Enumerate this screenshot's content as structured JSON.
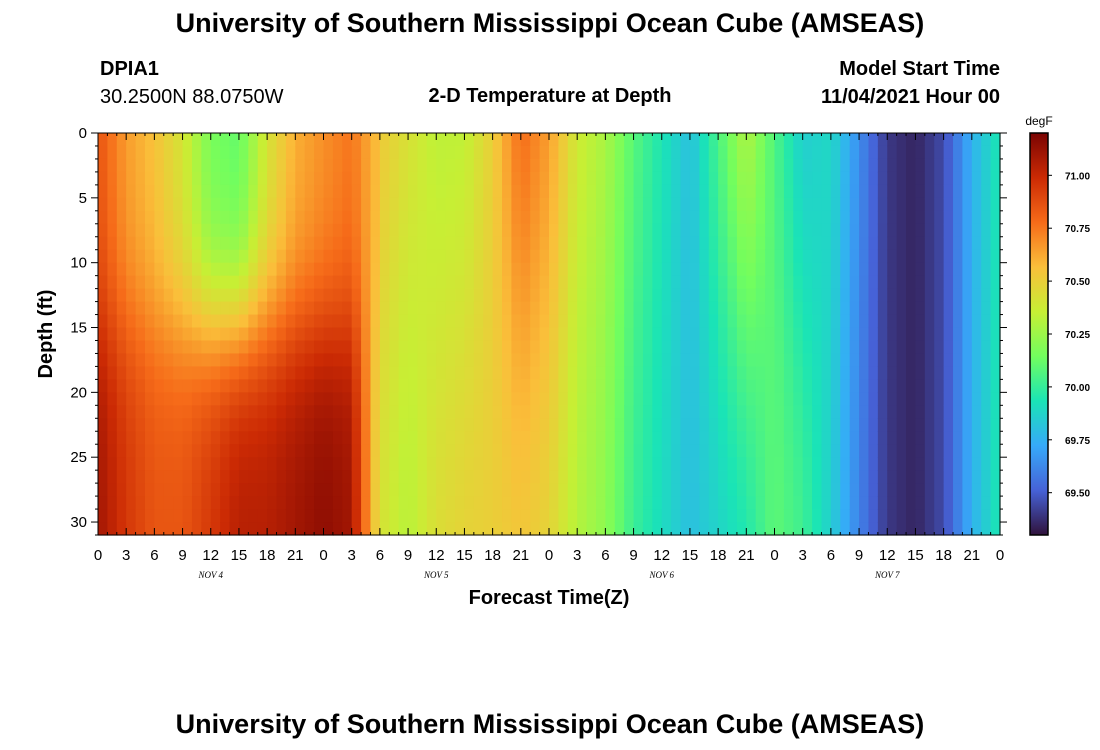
{
  "header": {
    "title": "University of Southern Mississippi Ocean Cube (AMSEAS)",
    "station_id": "DPIA1",
    "station_coords": "30.2500N  88.0750W",
    "model_start_label": "Model Start Time",
    "model_start_value": "11/04/2021 Hour 00"
  },
  "footer": {
    "title": "University of Southern Mississippi Ocean Cube (AMSEAS)"
  },
  "chart_data": {
    "type": "heatmap",
    "title": "2-D Temperature at Depth",
    "xlabel": "Forecast Time(Z)",
    "ylabel": "Depth (ft)",
    "x_range_hours": [
      0,
      96
    ],
    "x_step_hours": 3,
    "x_tick_labels": [
      "0",
      "3",
      "6",
      "9",
      "12",
      "15",
      "18",
      "21",
      "0",
      "3",
      "6",
      "9",
      "12",
      "15",
      "18",
      "21",
      "0",
      "3",
      "6",
      "9",
      "12",
      "15",
      "18",
      "21",
      "0",
      "3",
      "6",
      "9",
      "12",
      "15",
      "18",
      "21",
      "0"
    ],
    "day_labels": [
      "NOV 4",
      "NOV 5",
      "NOV 6",
      "NOV 7"
    ],
    "ylim": [
      0,
      31
    ],
    "y_reversed": true,
    "y_ticks": [
      0,
      5,
      10,
      15,
      20,
      25,
      30
    ],
    "colorbar": {
      "unit": "degF",
      "range": [
        69.3,
        71.2
      ],
      "ticks": [
        "71.00",
        "70.75",
        "70.50",
        "70.25",
        "70.00",
        "69.75",
        "69.50"
      ],
      "palette": [
        "#30123b",
        "#4662d7",
        "#36aaf9",
        "#1ae4b6",
        "#72fe5e",
        "#c7ef34",
        "#fabf3a",
        "#f66b19",
        "#cb2a04",
        "#7a0403"
      ]
    },
    "field": {
      "description_hours": [
        0,
        3,
        6,
        9,
        12,
        15,
        18,
        21,
        24,
        27,
        30,
        33,
        36,
        39,
        42,
        45,
        48,
        51,
        54,
        57,
        60,
        63,
        66,
        69,
        72,
        75,
        78,
        81,
        84,
        87,
        90,
        93,
        96
      ],
      "surface_degF": [
        70.85,
        70.65,
        70.55,
        70.4,
        70.15,
        70.1,
        70.4,
        70.6,
        70.68,
        70.75,
        70.55,
        70.45,
        70.3,
        70.3,
        70.5,
        70.85,
        70.7,
        70.4,
        70.3,
        70.1,
        69.95,
        69.8,
        70.1,
        70.4,
        70.05,
        69.8,
        69.9,
        69.65,
        69.4,
        69.35,
        69.45,
        69.75,
        69.95
      ],
      "bottom_degF": [
        71.1,
        70.95,
        70.85,
        70.85,
        70.95,
        71.05,
        71.05,
        71.1,
        71.15,
        71.1,
        70.4,
        70.3,
        70.45,
        70.5,
        70.5,
        70.5,
        70.45,
        70.3,
        70.2,
        70.0,
        69.9,
        69.8,
        69.85,
        69.9,
        70.1,
        70.05,
        69.85,
        69.6,
        69.4,
        69.35,
        69.45,
        69.75,
        69.95
      ]
    }
  }
}
